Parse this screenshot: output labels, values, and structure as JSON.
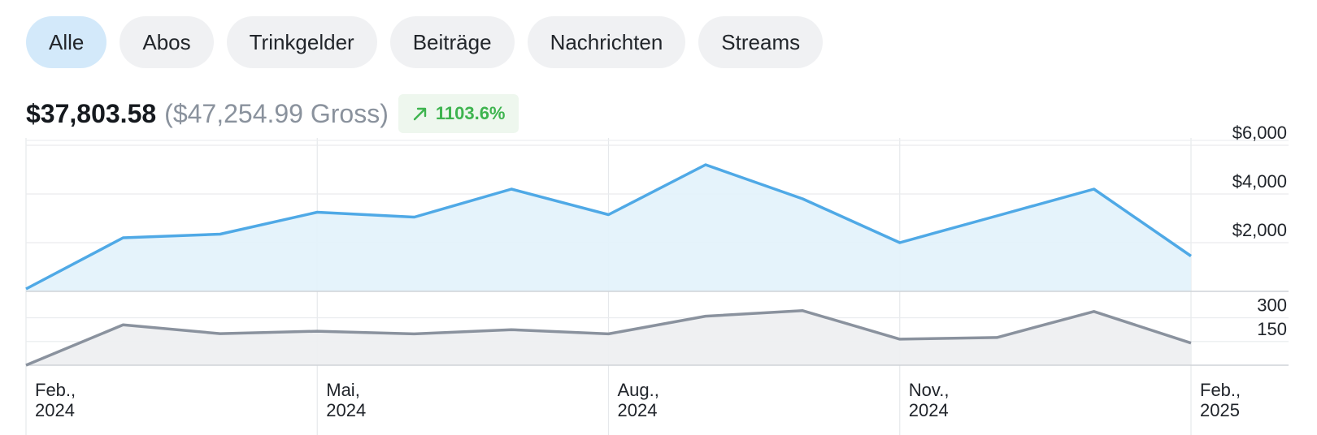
{
  "tabs": [
    {
      "label": "Alle",
      "active": true
    },
    {
      "label": "Abos",
      "active": false
    },
    {
      "label": "Trinkgelder",
      "active": false
    },
    {
      "label": "Beiträge",
      "active": false
    },
    {
      "label": "Nachrichten",
      "active": false
    },
    {
      "label": "Streams",
      "active": false
    }
  ],
  "summary": {
    "net": "$37,803.58",
    "gross": "($47,254.99 Gross)",
    "change": "1103.6%",
    "change_icon": "trend-up-arrow-icon"
  },
  "colors": {
    "accent": "#4fa9e6",
    "accent_fill": "#e3f2fb",
    "secondary": "#8a929e",
    "secondary_fill": "#eeeff1",
    "positive": "#3eb44f",
    "active_tab": "#d3e9fa"
  },
  "chart_data": [
    {
      "type": "area",
      "x": [
        "2024-02",
        "2024-03",
        "2024-04",
        "2024-05",
        "2024-06",
        "2024-07",
        "2024-08",
        "2024-09",
        "2024-10",
        "2024-11",
        "2024-12",
        "2025-01",
        "2025-02"
      ],
      "series": [
        {
          "values": [
            100,
            2200,
            2350,
            3250,
            3050,
            4200,
            3150,
            5200,
            3800,
            2000,
            3100,
            4200,
            1450
          ]
        }
      ],
      "ylim": [
        0,
        6200
      ],
      "yticks": [
        2000,
        4000,
        6000
      ],
      "ytick_labels": [
        "$2,000",
        "$4,000",
        "$6,000"
      ],
      "grid": true
    },
    {
      "type": "area",
      "x": [
        "2024-02",
        "2024-03",
        "2024-04",
        "2024-05",
        "2024-06",
        "2024-07",
        "2024-08",
        "2024-09",
        "2024-10",
        "2024-11",
        "2024-12",
        "2025-01",
        "2025-02"
      ],
      "series": [
        {
          "values": [
            0,
            255,
            200,
            215,
            198,
            225,
            198,
            310,
            345,
            165,
            175,
            340,
            140
          ]
        }
      ],
      "ylim": [
        0,
        380
      ],
      "yticks": [
        150,
        300
      ],
      "ytick_labels": [
        "150",
        "300"
      ],
      "grid": true
    }
  ],
  "x_axis": {
    "ticks": [
      {
        "x": "2024-02",
        "line1": "Feb.,",
        "line2": "2024"
      },
      {
        "x": "2024-05",
        "line1": "Mai,",
        "line2": "2024"
      },
      {
        "x": "2024-08",
        "line1": "Aug.,",
        "line2": "2024"
      },
      {
        "x": "2024-11",
        "line1": "Nov.,",
        "line2": "2024"
      },
      {
        "x": "2025-02",
        "line1": "Feb.,",
        "line2": "2025"
      }
    ]
  }
}
